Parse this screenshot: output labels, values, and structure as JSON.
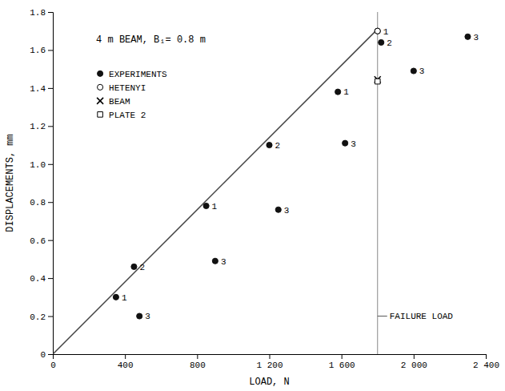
{
  "chart_data": {
    "type": "scatter",
    "title": "4 m BEAM, B₁= 0.8 m",
    "x_label": "LOAD, N",
    "y_label": "DISPLACEMENTS, mm",
    "xlim": [
      0,
      2400
    ],
    "ylim": [
      0,
      1.8
    ],
    "xticks": [
      0,
      400,
      800,
      {
        "value": 1200,
        "label": "1 200"
      },
      {
        "value": 1600,
        "label": "1 600"
      },
      {
        "value": 2000,
        "label": "2 000"
      },
      {
        "value": 2400,
        "label": "2 400"
      }
    ],
    "yticks": [
      0,
      0.2,
      0.4,
      0.6,
      0.8,
      {
        "value": 1.0,
        "label": "1.0"
      },
      1.2,
      1.4,
      1.6,
      1.8
    ],
    "grid": false,
    "legend": "upper left",
    "series": [
      {
        "type": "line",
        "color": "#444444",
        "line_style": "solid",
        "x": [
          0,
          1800
        ],
        "values": [
          0,
          1.71
        ]
      },
      {
        "name": "EXPERIMENTS",
        "type": "scatter",
        "marker": "circle",
        "color": "#111111",
        "x": [
          350,
          450,
          480,
          850,
          900,
          1200,
          1250,
          1580,
          1620,
          1800,
          1820,
          2300,
          2000
        ],
        "values": [
          0.3,
          0.46,
          0.2,
          0.78,
          0.49,
          1.1,
          0.76,
          1.38,
          1.11,
          1.7,
          1.64,
          1.67,
          1.49
        ],
        "labels": [
          "1",
          "2",
          "3",
          "1",
          "3",
          "2",
          "3",
          "1",
          "3",
          "1",
          "2",
          "3",
          "3"
        ]
      },
      {
        "name": "HETENYI",
        "type": "scatter",
        "marker": "open-circle",
        "color": "#000000",
        "x": [
          1800
        ],
        "values": [
          1.7
        ]
      },
      {
        "name": "BEAM",
        "type": "scatter",
        "marker": "x",
        "color": "#000000",
        "x": [
          1800
        ],
        "values": [
          1.445
        ]
      },
      {
        "name": "PLATE 2",
        "type": "scatter",
        "marker": "open-square",
        "color": "#000000",
        "x": [
          1800
        ],
        "values": [
          1.435
        ]
      }
    ],
    "annotations": [
      {
        "type": "vline",
        "x": 1800,
        "y": 0.2,
        "text": "FAILURE LOAD"
      }
    ]
  }
}
